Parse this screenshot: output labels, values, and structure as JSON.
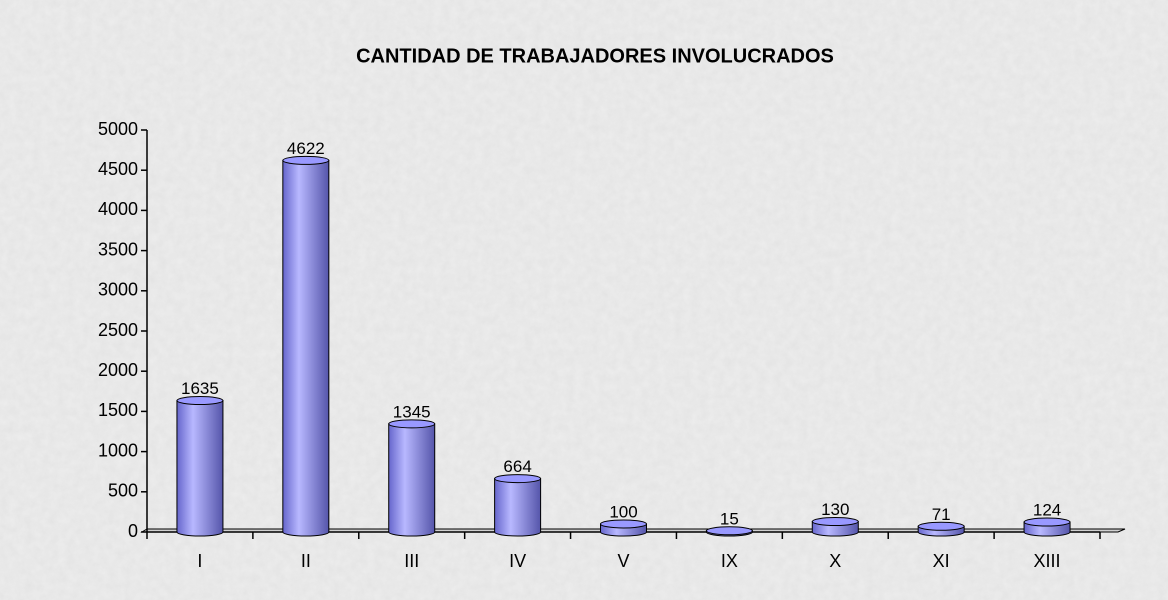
{
  "chart_data": {
    "type": "bar",
    "title": "CANTIDAD DE TRABAJADORES INVOLUCRADOS",
    "categories": [
      "I",
      "II",
      "III",
      "IV",
      "V",
      "IX",
      "X",
      "XI",
      "XIII"
    ],
    "values": [
      1635,
      4622,
      1345,
      664,
      100,
      15,
      130,
      71,
      124
    ],
    "color": "#9999ff",
    "ylim": [
      0,
      5000
    ],
    "yticks": [
      0,
      500,
      1000,
      1500,
      2000,
      2500,
      3000,
      3500,
      4000,
      4500,
      5000
    ]
  }
}
